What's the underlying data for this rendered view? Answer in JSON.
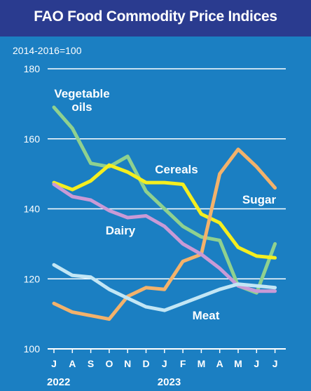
{
  "chart_data": {
    "type": "line",
    "title": "FAO Food Commodity Price Indices",
    "base_note": "2014-2016=100",
    "categories": [
      "J",
      "A",
      "S",
      "O",
      "N",
      "D",
      "J",
      "F",
      "M",
      "A",
      "M",
      "J",
      "J"
    ],
    "year_labels": [
      {
        "text": "2022",
        "start_index": 0
      },
      {
        "text": "2023",
        "start_index": 6
      }
    ],
    "ylim": [
      100,
      180
    ],
    "yticks": [
      100,
      120,
      140,
      160,
      180
    ],
    "grid": true,
    "series": [
      {
        "name": "Vegetable oils",
        "label_lines": [
          "Vegetable",
          "oils"
        ],
        "color": "#8fd18f",
        "values": [
          169,
          163,
          153,
          152,
          155,
          145,
          140,
          135,
          132,
          131,
          118,
          116,
          130
        ]
      },
      {
        "name": "Cereals",
        "label_lines": [
          "Cereals"
        ],
        "color": "#f4ee1f",
        "values": [
          147.5,
          145.5,
          148,
          152.5,
          150.5,
          147.5,
          147.5,
          147,
          138.5,
          136,
          129,
          126.5,
          126
        ]
      },
      {
        "name": "Sugar",
        "label_lines": [
          "Sugar"
        ],
        "color": "#f3b26b",
        "values": [
          113,
          110.5,
          109.5,
          108.5,
          115,
          117.5,
          117,
          125,
          127,
          150,
          157,
          152,
          146
        ]
      },
      {
        "name": "Dairy",
        "label_lines": [
          "Dairy"
        ],
        "color": "#c99ad6",
        "values": [
          147,
          143.5,
          142.5,
          139.5,
          137.5,
          138,
          135,
          130,
          127,
          123,
          118,
          116.5,
          116.5
        ]
      },
      {
        "name": "Meat",
        "label_lines": [
          "Meat"
        ],
        "color": "#c2e6f5",
        "values": [
          124,
          121,
          120.5,
          117,
          114.5,
          112,
          111,
          113,
          115,
          117,
          118.5,
          118,
          117.5
        ]
      }
    ],
    "axis_color": "#ffffff",
    "label_color": "#ffffff",
    "background": "#1b7fc2",
    "title_bar_color": "#2a3b8f"
  }
}
